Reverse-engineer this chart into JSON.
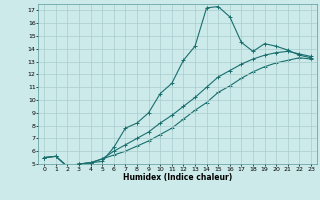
{
  "xlabel": "Humidex (Indice chaleur)",
  "background_color": "#cceaea",
  "grid_color": "#aacccc",
  "line_color": "#1a6e6e",
  "xlim": [
    -0.5,
    23.5
  ],
  "ylim": [
    5,
    17.5
  ],
  "xticks": [
    0,
    1,
    2,
    3,
    4,
    5,
    6,
    7,
    8,
    9,
    10,
    11,
    12,
    13,
    14,
    15,
    16,
    17,
    18,
    19,
    20,
    21,
    22,
    23
  ],
  "yticks": [
    5,
    6,
    7,
    8,
    9,
    10,
    11,
    12,
    13,
    14,
    15,
    16,
    17
  ],
  "line1_x": [
    0,
    1,
    2,
    3,
    4,
    5,
    6,
    7,
    8,
    9,
    10,
    11,
    12,
    13,
    14,
    15,
    16,
    17,
    18,
    19,
    20,
    21,
    22,
    23
  ],
  "line1_y": [
    5.5,
    5.6,
    4.8,
    5.0,
    5.1,
    5.2,
    6.3,
    7.8,
    8.2,
    9.0,
    10.5,
    11.3,
    13.1,
    14.2,
    17.2,
    17.3,
    16.5,
    14.5,
    13.8,
    14.4,
    14.2,
    13.9,
    13.5,
    13.3
  ],
  "line2_x": [
    0,
    1,
    2,
    3,
    4,
    5,
    6,
    7,
    8,
    9,
    10,
    11,
    12,
    13,
    14,
    15,
    16,
    17,
    18,
    19,
    20,
    21,
    22,
    23
  ],
  "line2_y": [
    5.5,
    5.6,
    4.8,
    5.0,
    5.1,
    5.4,
    6.0,
    6.5,
    7.0,
    7.5,
    8.2,
    8.8,
    9.5,
    10.2,
    11.0,
    11.8,
    12.3,
    12.8,
    13.2,
    13.5,
    13.7,
    13.8,
    13.6,
    13.4
  ],
  "line3_x": [
    0,
    1,
    2,
    3,
    4,
    5,
    6,
    7,
    8,
    9,
    10,
    11,
    12,
    13,
    14,
    15,
    16,
    17,
    18,
    19,
    20,
    21,
    22,
    23
  ],
  "line3_y": [
    5.5,
    5.6,
    4.8,
    5.0,
    5.1,
    5.4,
    5.7,
    6.0,
    6.4,
    6.8,
    7.3,
    7.8,
    8.5,
    9.2,
    9.8,
    10.6,
    11.1,
    11.7,
    12.2,
    12.6,
    12.9,
    13.1,
    13.3,
    13.2
  ]
}
